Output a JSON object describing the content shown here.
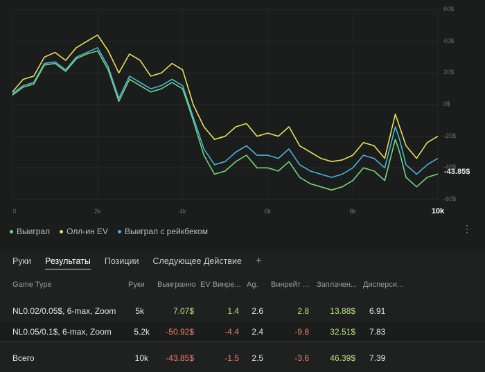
{
  "chart_data": {
    "type": "line",
    "x_range": [
      0,
      10000
    ],
    "y_range": [
      -60,
      60
    ],
    "y_ticks": [
      "60$",
      "40$",
      "20$",
      "0$",
      "-20$",
      "-40$",
      "-60$"
    ],
    "y_tick_values": [
      60,
      40,
      20,
      0,
      -20,
      -40,
      -60
    ],
    "x_ticks": [
      "0",
      "2k",
      "4k",
      "6k",
      "8k",
      "10k"
    ],
    "x_tick_values": [
      0,
      2000,
      4000,
      6000,
      8000,
      10000
    ],
    "end_label": "-43.85$",
    "grid": true,
    "legend_position": "bottom-left",
    "series": [
      {
        "name": "Олл-ин EV",
        "color": "#e8e05a",
        "x": [
          0,
          250,
          500,
          750,
          1000,
          1250,
          1500,
          1750,
          2000,
          2250,
          2500,
          2750,
          3000,
          3250,
          3500,
          3750,
          4000,
          4250,
          4500,
          4750,
          5000,
          5250,
          5500,
          5750,
          6000,
          6250,
          6500,
          6750,
          7000,
          7250,
          7500,
          7750,
          8000,
          8250,
          8500,
          8750,
          9000,
          9100,
          9250,
          9500,
          9750,
          10000
        ],
        "y": [
          8,
          16,
          18,
          30,
          33,
          28,
          36,
          40,
          44,
          34,
          20,
          32,
          28,
          18,
          20,
          26,
          22,
          0,
          -14,
          -22,
          -20,
          -14,
          -12,
          -20,
          -18,
          -20,
          -14,
          -26,
          -30,
          -34,
          -36,
          -35,
          -32,
          -24,
          -26,
          -34,
          -6,
          -14,
          -26,
          -34,
          -24,
          -20
        ]
      },
      {
        "name": "Выиграл с рейкбеком",
        "color": "#4ab3d8",
        "x": [
          0,
          250,
          500,
          750,
          1000,
          1250,
          1500,
          1750,
          2000,
          2250,
          2500,
          2750,
          3000,
          3250,
          3500,
          3750,
          4000,
          4250,
          4500,
          4750,
          5000,
          5250,
          5500,
          5750,
          6000,
          6250,
          6500,
          6750,
          7000,
          7250,
          7500,
          7750,
          8000,
          8250,
          8500,
          8750,
          9000,
          9100,
          9250,
          9500,
          9750,
          10000
        ],
        "y": [
          7,
          12,
          14,
          26,
          27,
          22,
          30,
          33,
          36,
          24,
          4,
          18,
          14,
          10,
          12,
          16,
          12,
          -8,
          -28,
          -38,
          -36,
          -30,
          -26,
          -32,
          -32,
          -34,
          -28,
          -38,
          -42,
          -44,
          -46,
          -44,
          -40,
          -32,
          -34,
          -40,
          -14,
          -22,
          -38,
          -44,
          -38,
          -34
        ]
      },
      {
        "name": "Выиграл",
        "color": "#74d67a",
        "x": [
          0,
          250,
          500,
          750,
          1000,
          1250,
          1500,
          1750,
          2000,
          2250,
          2500,
          2750,
          3000,
          3250,
          3500,
          3750,
          4000,
          4250,
          4500,
          4750,
          5000,
          5250,
          5500,
          5750,
          6000,
          6250,
          6500,
          6750,
          7000,
          7250,
          7500,
          7750,
          8000,
          8250,
          8500,
          8750,
          9000,
          9100,
          9250,
          9500,
          9750,
          10000
        ],
        "y": [
          6,
          11,
          13,
          25,
          26,
          21,
          29,
          32,
          34,
          22,
          2,
          16,
          12,
          8,
          10,
          14,
          10,
          -10,
          -32,
          -44,
          -42,
          -36,
          -32,
          -40,
          -40,
          -42,
          -36,
          -46,
          -50,
          -52,
          -54,
          -52,
          -48,
          -40,
          -42,
          -48,
          -22,
          -30,
          -46,
          -52,
          -46,
          -43.85
        ]
      }
    ]
  },
  "legend": [
    {
      "label": "Выиграл",
      "color": "#74d67a"
    },
    {
      "label": "Олл-ин EV",
      "color": "#e8e05a"
    },
    {
      "label": "Выиграл с рейкбеком",
      "color": "#4ab3d8"
    }
  ],
  "more_icon": "⋮",
  "tabs": {
    "hands": "Руки",
    "results": "Результаты",
    "positions": "Позиции",
    "next_action": "Следующее Действие",
    "add": "+"
  },
  "table": {
    "headers": {
      "game_type": "Game Type",
      "hands": "Руки",
      "won": "Выигранно",
      "ev_winrate": "EV Винре...",
      "ag": "Ag.",
      "winrate": "Винрейт ...",
      "paid": "Заплачен...",
      "dispersion": "Дисперси..."
    },
    "rows": [
      {
        "game_type": "NL0.02/0.05$, 6-max, Zoom",
        "hands": "5k",
        "won": "7.07$",
        "ev_winrate": "1.4",
        "ag": "2.6",
        "winrate": "2.8",
        "paid": "13.88$",
        "dispersion": "6.91"
      },
      {
        "game_type": "NL0.05/0.1$, 6-max, Zoom",
        "hands": "5.2k",
        "won": "-50.92$",
        "ev_winrate": "-4.4",
        "ag": "2.4",
        "winrate": "-9.8",
        "paid": "32.51$",
        "dispersion": "7.83"
      }
    ],
    "total": {
      "game_type": "Всего",
      "hands": "10k",
      "won": "-43.85$",
      "ev_winrate": "-1.5",
      "ag": "2.5",
      "winrate": "-3.6",
      "paid": "46.39$",
      "dispersion": "7.39"
    }
  }
}
